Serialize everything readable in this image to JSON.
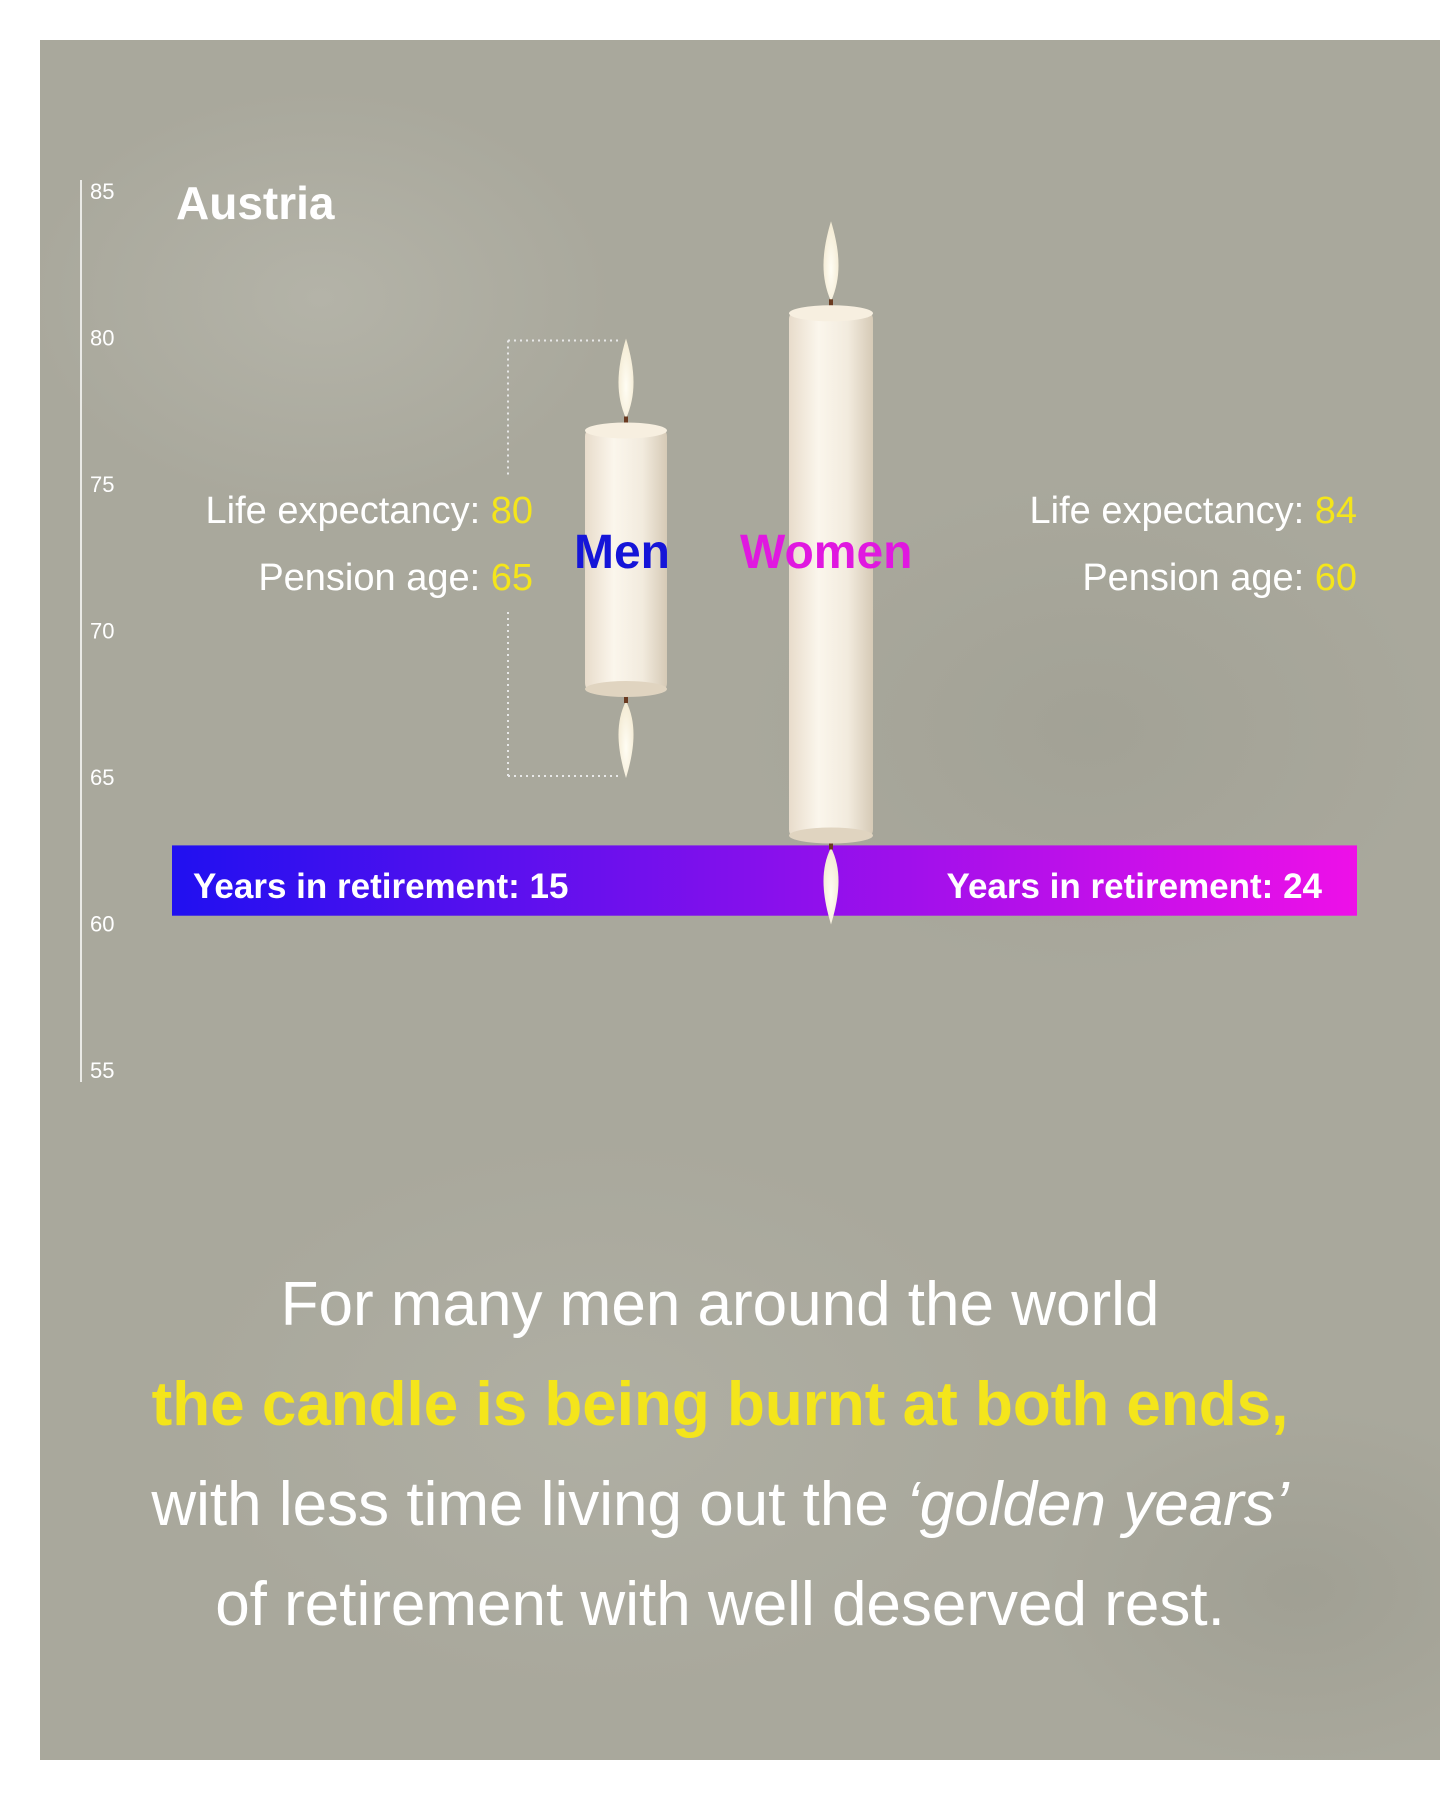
{
  "colors": {
    "background": "#a9a89c",
    "men": "#1515d8",
    "women": "#e018e0",
    "highlight": "#f4e51b",
    "bar_gradient": [
      "#2010f0",
      "#ee10e8"
    ]
  },
  "chart_data": {
    "type": "candle-range",
    "title": "Austria",
    "yticks": [
      85,
      80,
      75,
      70,
      65,
      60,
      55
    ],
    "ylim": [
      55,
      85
    ],
    "series": [
      {
        "name": "Men",
        "life_expectancy_label": "Life expectancy:",
        "life_expectancy": 80,
        "pension_age_label": "Pension age:",
        "pension_age": 65,
        "retirement_text": "Years in retirement: 15",
        "years_in_retirement": 15
      },
      {
        "name": "Women",
        "life_expectancy_label": "Life expectancy:",
        "life_expectancy": 84,
        "pension_age_label": "Pension age:",
        "pension_age": 60,
        "retirement_text": "Years in retirement: 24",
        "years_in_retirement": 24
      }
    ]
  },
  "message": {
    "line1": "For many men around the world",
    "line2": "the candle is being burnt at both ends,",
    "line3_start": "with less time living out the ",
    "line3_italic": "‘golden years’",
    "line4": "of retirement with well deserved rest."
  }
}
